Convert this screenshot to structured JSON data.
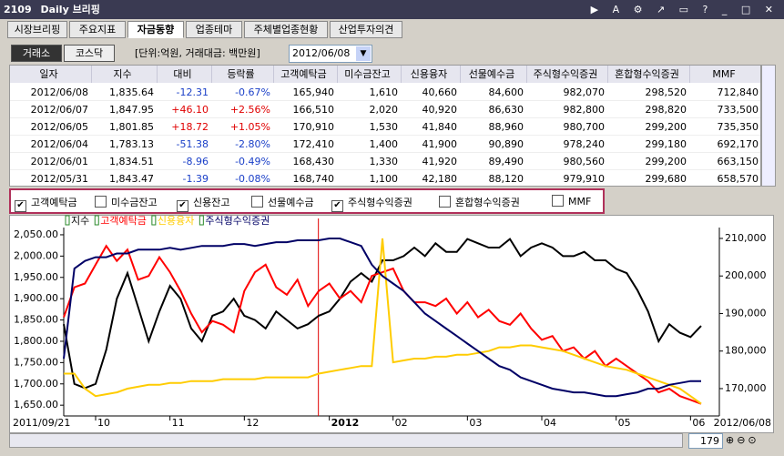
{
  "window": {
    "code": "2109",
    "title": "Daily 브리핑"
  },
  "tabs": [
    "시장브리핑",
    "주요지표",
    "자금동향",
    "업종테마",
    "주체별업종현황",
    "산업투자의견"
  ],
  "market_buttons": [
    "거래소",
    "코스닥"
  ],
  "unit_label": "[단위:억원, 거래대금: 백만원]",
  "date_select": "2012/06/08",
  "table": {
    "columns": [
      "일자",
      "지수",
      "대비",
      "등락률",
      "고객예탁금",
      "미수금잔고",
      "신용융자",
      "선물예수금",
      "주식형수익증권",
      "혼합형수익증권",
      "MMF"
    ],
    "rows": [
      [
        "2012/06/08",
        "1,835.64",
        "-12.31",
        "-0.67%",
        "165,940",
        "1,610",
        "40,660",
        "84,600",
        "982,070",
        "298,520",
        "712,840"
      ],
      [
        "2012/06/07",
        "1,847.95",
        "+46.10",
        "+2.56%",
        "166,510",
        "2,020",
        "40,920",
        "86,630",
        "982,800",
        "298,820",
        "733,500"
      ],
      [
        "2012/06/05",
        "1,801.85",
        "+18.72",
        "+1.05%",
        "170,910",
        "1,530",
        "41,840",
        "88,960",
        "980,700",
        "299,200",
        "735,350"
      ],
      [
        "2012/06/04",
        "1,783.13",
        "-51.38",
        "-2.80%",
        "172,410",
        "1,400",
        "41,900",
        "90,890",
        "978,240",
        "299,180",
        "692,170"
      ],
      [
        "2012/06/01",
        "1,834.51",
        "-8.96",
        "-0.49%",
        "168,430",
        "1,330",
        "41,920",
        "89,490",
        "980,560",
        "299,200",
        "663,150"
      ],
      [
        "2012/05/31",
        "1,843.47",
        "-1.39",
        "-0.08%",
        "168,740",
        "1,100",
        "42,180",
        "88,120",
        "979,910",
        "299,680",
        "658,570"
      ]
    ]
  },
  "checkboxes": [
    {
      "label": "고객예탁금",
      "checked": true
    },
    {
      "label": "미수금잔고",
      "checked": false
    },
    {
      "label": "신용잔고",
      "checked": true
    },
    {
      "label": "선물예수금",
      "checked": false
    },
    {
      "label": "주식형수익증권",
      "checked": true
    },
    {
      "label": "혼합형수익증권",
      "checked": false
    },
    {
      "label": "MMF",
      "checked": false
    }
  ],
  "zoom_value": "179",
  "chart_data": {
    "type": "line",
    "categories": [
      "2011/09/21",
      null,
      null,
      "10",
      null,
      null,
      null,
      null,
      null,
      null,
      "11",
      null,
      null,
      null,
      null,
      null,
      null,
      "12",
      null,
      null,
      null,
      null,
      null,
      null,
      null,
      "2012",
      null,
      null,
      null,
      null,
      null,
      "02",
      null,
      null,
      null,
      null,
      null,
      null,
      "03",
      null,
      null,
      null,
      null,
      null,
      null,
      "04",
      null,
      null,
      null,
      null,
      null,
      null,
      "05",
      null,
      null,
      null,
      null,
      null,
      null,
      "06",
      "2012/06/08"
    ],
    "ylim": [
      1629,
      2067
    ],
    "yticks": [
      {
        "value": 1650,
        "label": "1,650.00"
      },
      {
        "value": 1700,
        "label": "1,700.00"
      },
      {
        "value": 1750,
        "label": "1,750.00"
      },
      {
        "value": 1800,
        "label": "1,800.00"
      },
      {
        "value": 1850,
        "label": "1,850.00"
      },
      {
        "value": 1900,
        "label": "1,900.00"
      },
      {
        "value": 1950,
        "label": "1,950.00"
      },
      {
        "value": 2000,
        "label": "2,000.00"
      },
      {
        "value": 2050,
        "label": "2,050.00"
      }
    ],
    "y2lim": [
      163200,
      212900
    ],
    "y2ticks": [
      {
        "value": 170000,
        "label": "170,000"
      },
      {
        "value": 180000,
        "label": "180,000"
      },
      {
        "value": 190000,
        "label": "190,000"
      },
      {
        "value": 200000,
        "label": "200,000"
      },
      {
        "value": 210000,
        "label": "210,000"
      }
    ],
    "series": [
      {
        "name": "지수",
        "color": "#000000",
        "values": [
          1840,
          1700,
          1690,
          1700,
          1780,
          1900,
          1960,
          1880,
          1800,
          1870,
          1930,
          1900,
          1830,
          1800,
          1860,
          1870,
          1900,
          1860,
          1850,
          1830,
          1870,
          1850,
          1830,
          1840,
          1860,
          1870,
          1900,
          1940,
          1960,
          1940,
          1990,
          1990,
          2000,
          2020,
          2000,
          2030,
          2010,
          2010,
          2040,
          2030,
          2020,
          2020,
          2040,
          2000,
          2020,
          2030,
          2020,
          2000,
          2000,
          2010,
          1990,
          1990,
          1970,
          1960,
          1920,
          1870,
          1800,
          1840,
          1820,
          1810,
          1836
        ]
      },
      {
        "name": "고객예탁금",
        "color": "#ff0000",
        "axis": "y2",
        "values": [
          189000,
          197000,
          198000,
          203000,
          208000,
          204000,
          207000,
          199000,
          200000,
          205000,
          201000,
          196000,
          190000,
          185000,
          188000,
          187000,
          185000,
          196000,
          201000,
          203000,
          197000,
          195000,
          199000,
          192000,
          196000,
          198000,
          194000,
          196000,
          193000,
          200000,
          201000,
          202000,
          196000,
          193000,
          193000,
          192000,
          194000,
          190000,
          193000,
          189000,
          191000,
          188000,
          187000,
          190000,
          186000,
          183000,
          184000,
          180000,
          181000,
          178000,
          180000,
          176000,
          178000,
          176000,
          174000,
          172000,
          169000,
          170000,
          168000,
          167000,
          165940
        ]
      },
      {
        "name": "신용융자",
        "color": "#ffcc00",
        "axis": "y2",
        "values": [
          174000,
          174000,
          170000,
          168000,
          168500,
          169000,
          170000,
          170500,
          171000,
          171000,
          171500,
          171500,
          172000,
          172000,
          172000,
          172500,
          172500,
          172500,
          172500,
          173000,
          173000,
          173000,
          173000,
          173000,
          174000,
          174500,
          175000,
          175500,
          176000,
          176000,
          210000,
          177000,
          177500,
          178000,
          178000,
          178500,
          178500,
          179000,
          179000,
          179500,
          180000,
          181000,
          181000,
          181500,
          181500,
          181000,
          180500,
          180000,
          179000,
          178000,
          177000,
          176000,
          175500,
          175000,
          174000,
          173000,
          172000,
          171000,
          170000,
          168000,
          166000
        ]
      },
      {
        "name": "주식형수익증권",
        "color": "#000066",
        "axis": "y2",
        "values": [
          178000,
          202000,
          204000,
          205000,
          205000,
          206000,
          206000,
          207000,
          207000,
          207000,
          207500,
          207000,
          207500,
          208000,
          208000,
          208000,
          208500,
          208500,
          208000,
          208500,
          209000,
          209000,
          209500,
          209500,
          209500,
          210000,
          210000,
          209000,
          208000,
          203000,
          200000,
          198000,
          196000,
          193000,
          190000,
          188000,
          186000,
          184000,
          182000,
          180000,
          178000,
          176000,
          175000,
          173000,
          172000,
          171000,
          170000,
          169500,
          169000,
          169000,
          168500,
          168000,
          168000,
          168500,
          169000,
          170000,
          170000,
          171000,
          171500,
          172000,
          172000
        ]
      }
    ]
  }
}
